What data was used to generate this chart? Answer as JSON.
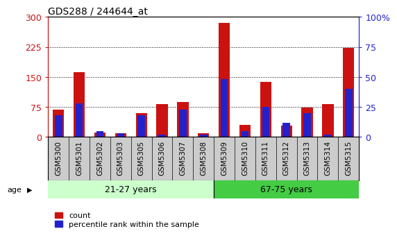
{
  "title": "GDS288 / 244644_at",
  "samples": [
    "GSM5300",
    "GSM5301",
    "GSM5302",
    "GSM5303",
    "GSM5305",
    "GSM5306",
    "GSM5307",
    "GSM5308",
    "GSM5309",
    "GSM5310",
    "GSM5311",
    "GSM5312",
    "GSM5313",
    "GSM5314",
    "GSM5315"
  ],
  "count_values": [
    68,
    162,
    12,
    9,
    60,
    82,
    88,
    10,
    285,
    30,
    138,
    28,
    73,
    83,
    222
  ],
  "percentile_values": [
    18,
    28,
    5,
    3,
    18,
    2,
    23,
    2,
    48,
    5,
    25,
    12,
    20,
    2,
    40
  ],
  "group1_label": "21-27 years",
  "group2_label": "67-75 years",
  "group1_count": 8,
  "group2_count": 7,
  "ylim_left": [
    0,
    300
  ],
  "ylim_right": [
    0,
    100
  ],
  "yticks_left": [
    0,
    75,
    150,
    225,
    300
  ],
  "yticks_right": [
    0,
    25,
    50,
    75,
    100
  ],
  "bar_color": "#cc1111",
  "blue_color": "#2222cc",
  "group1_bg": "#ccffcc",
  "group2_bg": "#44cc44",
  "xtick_bg": "#cccccc",
  "left_axis_color": "#cc1111",
  "right_axis_color": "#2222cc",
  "legend_count_label": "count",
  "legend_pct_label": "percentile rank within the sample",
  "bar_width": 0.55,
  "blue_bar_width": 0.35
}
